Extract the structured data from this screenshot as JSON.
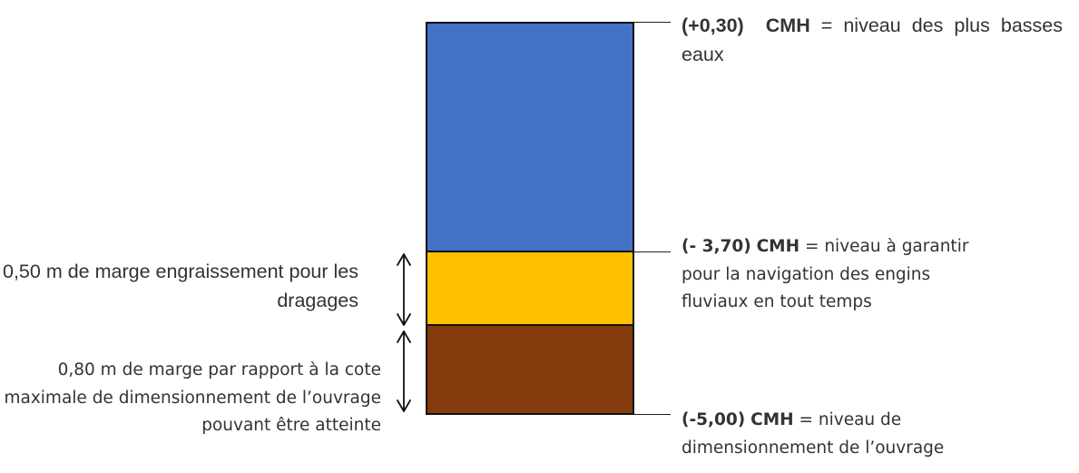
{
  "colors": {
    "water": "#4472c4",
    "dredging_margin": "#ffc000",
    "design_margin": "#843c0c"
  },
  "levels": {
    "top": {
      "value": "(+0,30)",
      "unit": "CMH",
      "description": "= niveau des plus basses eaux"
    },
    "middle": {
      "value": "(- 3,70)",
      "unit": "CMH",
      "description": "= niveau à garantir pour la navigation des engins fluviaux en tout temps"
    },
    "bottom": {
      "value": "(-5,00)",
      "unit": "CMH",
      "description": "= niveau de dimensionnement de l’ouvrage"
    }
  },
  "margins": {
    "dredging": "0,50 m de marge engraissement pour les dragages",
    "design": "0,80 m de marge par rapport à la cote maximale de dimensionnement de l’ouvrage pouvant être atteinte"
  }
}
